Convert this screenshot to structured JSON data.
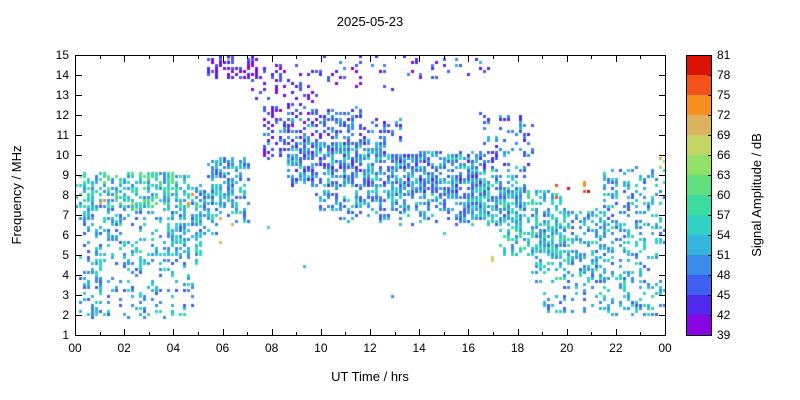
{
  "title": "2025-05-23",
  "chart_data": {
    "type": "heatmap",
    "title": "2025-05-23",
    "xlabel": "UT Time / hrs",
    "ylabel": "Frequency / MHz",
    "colorbar_label": "Signal Amplitude / dB",
    "x_range": [
      0,
      24
    ],
    "x_tick_values": [
      0,
      2,
      4,
      6,
      8,
      10,
      12,
      14,
      16,
      18,
      20,
      22,
      24
    ],
    "x_tick_labels": [
      "00",
      "02",
      "04",
      "06",
      "08",
      "10",
      "12",
      "14",
      "16",
      "18",
      "20",
      "22",
      "00"
    ],
    "y_range": [
      1,
      15
    ],
    "y_tick_values": [
      1,
      2,
      3,
      4,
      5,
      6,
      7,
      8,
      9,
      10,
      11,
      12,
      13,
      14,
      15
    ],
    "amp_range": [
      39,
      81
    ],
    "colorbar_tick_values": [
      39,
      42,
      45,
      48,
      51,
      54,
      57,
      60,
      63,
      66,
      69,
      72,
      75,
      78,
      81
    ],
    "colors": [
      "#8804e2",
      "#5028ee",
      "#3f5ef2",
      "#3a8ceb",
      "#33b5de",
      "#30d2c4",
      "#3bdb9e",
      "#5fdf7d",
      "#93e069",
      "#c6d465",
      "#ddb25f",
      "#f68f1e",
      "#f1531b",
      "#dc1205"
    ],
    "point_size": 3,
    "grid": false,
    "legend_position": "right-colorbar",
    "bands": [
      {
        "t": [
          0.2,
          1.1
        ],
        "f": [
          1.9,
          7.4
        ],
        "n": 90,
        "a": [
          46,
          57
        ]
      },
      {
        "t": [
          0.0,
          4.6
        ],
        "f": [
          7.4,
          9.2
        ],
        "n": 300,
        "a": [
          48,
          62
        ]
      },
      {
        "t": [
          0.2,
          4.6
        ],
        "f": [
          6.6,
          7.5
        ],
        "n": 60,
        "a": [
          47,
          57
        ]
      },
      {
        "t": [
          0.8,
          4.6
        ],
        "f": [
          4.3,
          6.6
        ],
        "n": 140,
        "a": [
          47,
          58
        ]
      },
      {
        "t": [
          0.8,
          4.8
        ],
        "f": [
          1.9,
          4.3
        ],
        "n": 90,
        "a": [
          46,
          56
        ]
      },
      {
        "t": [
          3.9,
          5.1
        ],
        "f": [
          4.6,
          7.2
        ],
        "n": 90,
        "a": [
          47,
          58
        ]
      },
      {
        "t": [
          4.7,
          5.8
        ],
        "f": [
          6.0,
          8.6
        ],
        "n": 90,
        "a": [
          46,
          58
        ]
      },
      {
        "t": [
          5.4,
          6.4
        ],
        "f": [
          7.4,
          9.9
        ],
        "n": 90,
        "a": [
          45,
          57
        ]
      },
      {
        "t": [
          6.2,
          7.0
        ],
        "f": [
          6.7,
          9.9
        ],
        "n": 70,
        "a": [
          45,
          57
        ]
      },
      {
        "t": [
          5.3,
          7.3
        ],
        "f": [
          13.9,
          15.0
        ],
        "n": 70,
        "a": [
          39,
          48
        ]
      },
      {
        "t": [
          7.1,
          9.9
        ],
        "f": [
          12.7,
          14.6
        ],
        "n": 55,
        "a": [
          39,
          48
        ]
      },
      {
        "t": [
          9.8,
          13.0
        ],
        "f": [
          13.4,
          15.0
        ],
        "n": 28,
        "a": [
          39,
          49
        ]
      },
      {
        "t": [
          13.0,
          17.2
        ],
        "f": [
          13.9,
          15.0
        ],
        "n": 26,
        "a": [
          41,
          52
        ]
      },
      {
        "t": [
          7.6,
          9.6
        ],
        "f": [
          9.9,
          12.6
        ],
        "n": 130,
        "a": [
          40,
          52
        ]
      },
      {
        "t": [
          9.6,
          11.6
        ],
        "f": [
          10.4,
          12.4
        ],
        "n": 90,
        "a": [
          42,
          52
        ]
      },
      {
        "t": [
          11.5,
          13.2
        ],
        "f": [
          10.6,
          11.9
        ],
        "n": 40,
        "a": [
          42,
          52
        ]
      },
      {
        "t": [
          8.6,
          12.6
        ],
        "f": [
          8.5,
          10.7
        ],
        "n": 420,
        "a": [
          44,
          56
        ]
      },
      {
        "t": [
          12.6,
          16.6
        ],
        "f": [
          8.0,
          10.2
        ],
        "n": 430,
        "a": [
          44,
          56
        ]
      },
      {
        "t": [
          9.8,
          16.6
        ],
        "f": [
          7.3,
          8.4
        ],
        "n": 230,
        "a": [
          45,
          56
        ]
      },
      {
        "t": [
          10.6,
          16.2
        ],
        "f": [
          6.6,
          7.3
        ],
        "n": 60,
        "a": [
          45,
          55
        ]
      },
      {
        "t": [
          16.0,
          18.2
        ],
        "f": [
          6.6,
          9.4
        ],
        "n": 230,
        "a": [
          46,
          59
        ]
      },
      {
        "t": [
          16.5,
          18.5
        ],
        "f": [
          9.4,
          12.1
        ],
        "n": 70,
        "a": [
          42,
          52
        ]
      },
      {
        "t": [
          17.2,
          19.8
        ],
        "f": [
          5.0,
          8.3
        ],
        "n": 220,
        "a": [
          47,
          60
        ]
      },
      {
        "t": [
          18.6,
          21.6
        ],
        "f": [
          3.7,
          7.4
        ],
        "n": 260,
        "a": [
          47,
          60
        ]
      },
      {
        "t": [
          18.9,
          20.4
        ],
        "f": [
          2.2,
          3.6
        ],
        "n": 25,
        "a": [
          47,
          56
        ]
      },
      {
        "t": [
          19.3,
          20.8
        ],
        "f": [
          7.9,
          8.7
        ],
        "n": 7,
        "a": [
          74,
          81
        ]
      },
      {
        "t": [
          20.6,
          23.9
        ],
        "f": [
          2.1,
          6.2
        ],
        "n": 200,
        "a": [
          47,
          58
        ]
      },
      {
        "t": [
          21.4,
          23.9
        ],
        "f": [
          6.2,
          9.4
        ],
        "n": 150,
        "a": [
          45,
          58
        ]
      },
      {
        "t": [
          23.6,
          24.0
        ],
        "f": [
          9.3,
          10.1
        ],
        "n": 6,
        "a": [
          50,
          70
        ]
      },
      {
        "t": [
          0.9,
          1.3
        ],
        "f": [
          7.4,
          7.9
        ],
        "n": 2,
        "a": [
          69,
          74
        ]
      },
      {
        "t": [
          2.2,
          2.6
        ],
        "f": [
          7.3,
          7.8
        ],
        "n": 2,
        "a": [
          66,
          72
        ]
      },
      {
        "t": [
          4.6,
          5.0
        ],
        "f": [
          7.6,
          8.1
        ],
        "n": 2,
        "a": [
          69,
          75
        ]
      },
      {
        "t": [
          5.7,
          6.5
        ],
        "f": [
          5.6,
          7.4
        ],
        "n": 3,
        "a": [
          66,
          73
        ]
      },
      {
        "t": [
          6.0,
          6.3
        ],
        "f": [
          14.5,
          14.9
        ],
        "n": 1,
        "a": [
          69,
          72
        ]
      },
      {
        "t": [
          7.7,
          8.1
        ],
        "f": [
          6.3,
          6.7
        ],
        "n": 1,
        "a": [
          57,
          60
        ]
      },
      {
        "t": [
          9.0,
          9.4
        ],
        "f": [
          4.3,
          4.7
        ],
        "n": 1,
        "a": [
          51,
          54
        ]
      },
      {
        "t": [
          12.9,
          13.3
        ],
        "f": [
          2.6,
          3.1
        ],
        "n": 1,
        "a": [
          48,
          52
        ]
      },
      {
        "t": [
          16.7,
          17.1
        ],
        "f": [
          4.7,
          5.1
        ],
        "n": 2,
        "a": [
          66,
          72
        ]
      },
      {
        "t": [
          14.9,
          15.3
        ],
        "f": [
          5.9,
          6.3
        ],
        "n": 1,
        "a": [
          51,
          55
        ]
      }
    ]
  }
}
